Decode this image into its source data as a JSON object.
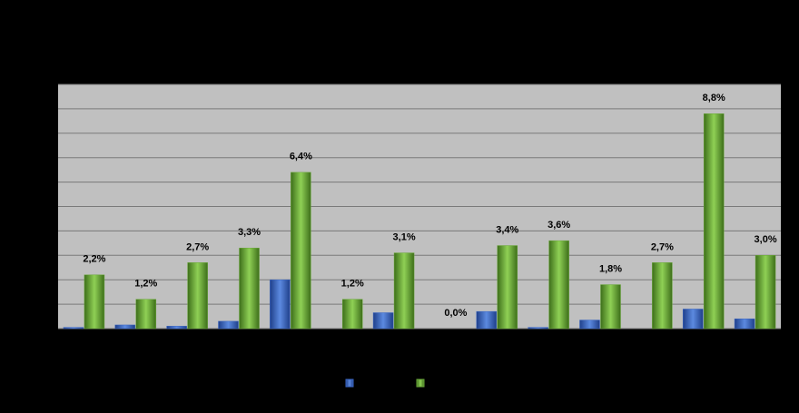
{
  "chart_data": {
    "type": "bar",
    "categories": [
      null,
      null,
      null,
      null,
      null,
      null,
      null,
      null,
      null,
      null,
      null,
      null,
      null,
      null
    ],
    "series": [
      {
        "color": "#3a66c4",
        "values": [
          0.05,
          0.15,
          0.1,
          0.3,
          2.0,
          0,
          0.65,
          0,
          0.7,
          0.05,
          0.35,
          0,
          0.8,
          0.4
        ]
      },
      {
        "color": "#6aa83a",
        "values": [
          2.2,
          1.2,
          2.7,
          3.3,
          6.4,
          1.2,
          3.1,
          0.0,
          3.4,
          3.6,
          1.8,
          2.7,
          8.8,
          3.0
        ],
        "value_labels": [
          "2,2%",
          "1,2%",
          "2,7%",
          "3,3%",
          "6,4%",
          "1,2%",
          "3,1%",
          "0,0%",
          "3,4%",
          "3,6%",
          "1,8%",
          "2,7%",
          "8,8%",
          "3,0%"
        ]
      }
    ],
    "ylim": [
      0,
      10
    ],
    "yticks": [
      0,
      1,
      2,
      3,
      4,
      5,
      6,
      7,
      8,
      9,
      10
    ],
    "grid": true
  }
}
